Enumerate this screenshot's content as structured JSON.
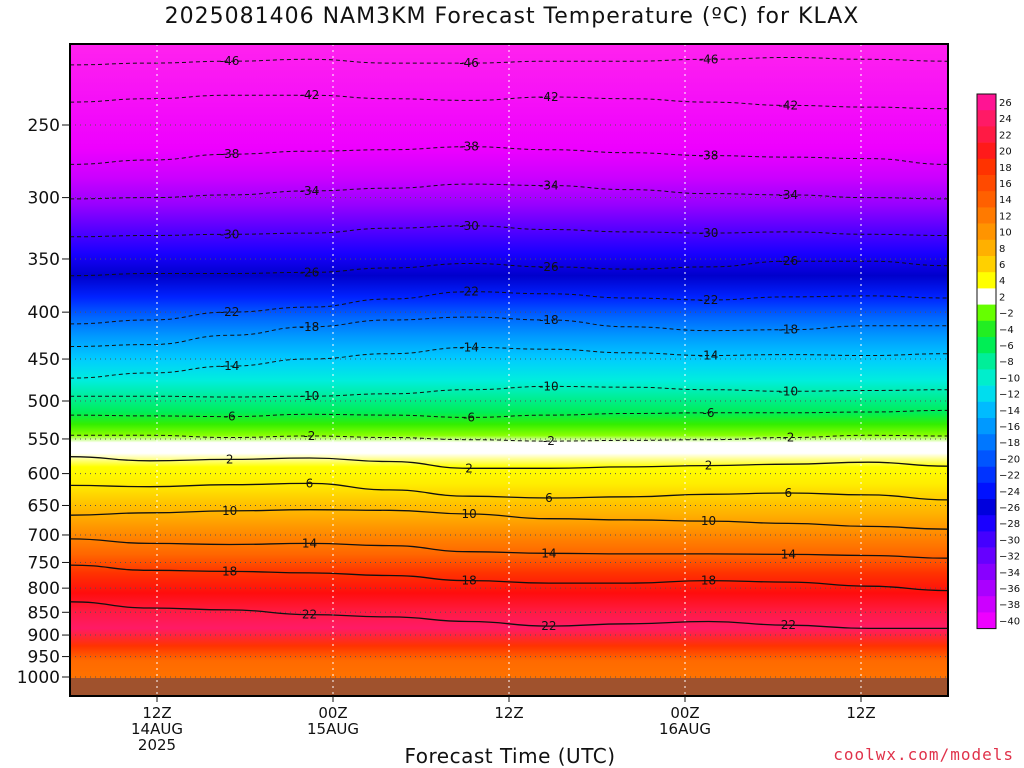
{
  "chart_data": {
    "type": "heatmap",
    "title": "2025081406 NAM3KM Forecast Temperature (ºC) for KLAX",
    "xlabel": "Forecast Time (UTC)",
    "ylabel": "",
    "y_scale": "log-pressure (hPa), inverted",
    "ylim": [
      1000,
      200
    ],
    "y_ticks": [
      "250",
      "300",
      "350",
      "400",
      "450",
      "500",
      "550",
      "600",
      "650",
      "700",
      "750",
      "800",
      "850",
      "900",
      "950",
      "1000"
    ],
    "x_ticks": [
      {
        "lines": [
          "12Z",
          "14AUG",
          "2025"
        ]
      },
      {
        "lines": [
          "00Z",
          "15AUG"
        ]
      },
      {
        "lines": [
          "12Z"
        ]
      },
      {
        "lines": [
          "00Z",
          "16AUG"
        ]
      },
      {
        "lines": [
          "12Z"
        ]
      }
    ],
    "colorbar": {
      "labels": [
        "26",
        "24",
        "22",
        "20",
        "18",
        "16",
        "14",
        "12",
        "10",
        "8",
        "6",
        "4",
        "2",
        "−2",
        "−4",
        "−6",
        "−8",
        "−10",
        "−12",
        "−14",
        "−16",
        "−18",
        "−20",
        "−22",
        "−24",
        "−26",
        "−28",
        "−30",
        "−32",
        "−34",
        "−36",
        "−38",
        "−40"
      ],
      "colors": [
        "#ff1493",
        "#ff1a66",
        "#ff1a44",
        "#ff1a1a",
        "#ff3300",
        "#ff4a00",
        "#ff6000",
        "#ff7a00",
        "#ff9400",
        "#ffb000",
        "#ffd000",
        "#ffff00",
        "#ffffff",
        "#66ff00",
        "#22ee22",
        "#00ee55",
        "#00ee99",
        "#00eecc",
        "#00ddee",
        "#00bbff",
        "#0099ff",
        "#0077ff",
        "#0055ff",
        "#0033ff",
        "#0011ff",
        "#0000dd",
        "#1a00ff",
        "#4400ff",
        "#6600ff",
        "#8800ff",
        "#aa00ff",
        "#cc00ff",
        "#ee00ff"
      ]
    },
    "isotherms": [
      {
        "label": "-46",
        "p": [
          215,
          214,
          213,
          212,
          214,
          214,
          213,
          213,
          212,
          211,
          212,
          213
        ]
      },
      {
        "label": "-42",
        "p": [
          236,
          234,
          232,
          232,
          234,
          235,
          233,
          234,
          236,
          238,
          239,
          240
        ]
      },
      {
        "label": "-38",
        "p": [
          276,
          273,
          269,
          267,
          266,
          264,
          266,
          268,
          270,
          271,
          272,
          276
        ]
      },
      {
        "label": "-34",
        "p": [
          301,
          300,
          298,
          295,
          293,
          290,
          291,
          294,
          297,
          298,
          300,
          301
        ]
      },
      {
        "label": "-30",
        "p": [
          331,
          330,
          329,
          328,
          324,
          322,
          325,
          327,
          328,
          327,
          329,
          330
        ]
      },
      {
        "label": "-26",
        "p": [
          365,
          363,
          363,
          362,
          358,
          354,
          357,
          359,
          357,
          352,
          352,
          356
        ]
      },
      {
        "label": "-22",
        "p": [
          412,
          408,
          400,
          395,
          387,
          380,
          382,
          386,
          388,
          385,
          384,
          386
        ]
      },
      {
        "label": "-18",
        "p": [
          436,
          434,
          424,
          415,
          408,
          405,
          408,
          415,
          419,
          418,
          414,
          414
        ]
      },
      {
        "label": "-14",
        "p": [
          472,
          466,
          458,
          450,
          444,
          437,
          439,
          443,
          446,
          445,
          446,
          444
        ]
      },
      {
        "label": "-10",
        "p": [
          494,
          494,
          495,
          494,
          491,
          486,
          482,
          483,
          486,
          488,
          487,
          486
        ]
      },
      {
        "label": "-6",
        "p": [
          518,
          519,
          520,
          517,
          518,
          521,
          518,
          516,
          515,
          515,
          514,
          512
        ]
      },
      {
        "label": "-2",
        "p": [
          545,
          545,
          548,
          546,
          548,
          551,
          553,
          552,
          551,
          548,
          545,
          546
        ]
      },
      {
        "label": "2",
        "p": [
          575,
          581,
          579,
          577,
          582,
          592,
          592,
          590,
          588,
          586,
          583,
          589
        ]
      },
      {
        "label": "6",
        "p": [
          618,
          620,
          617,
          615,
          625,
          635,
          638,
          636,
          632,
          630,
          633,
          641
        ]
      },
      {
        "label": "10",
        "p": [
          666,
          662,
          659,
          657,
          658,
          664,
          672,
          674,
          676,
          680,
          685,
          690
        ]
      },
      {
        "label": "14",
        "p": [
          707,
          715,
          717,
          715,
          719,
          730,
          733,
          734,
          734,
          735,
          737,
          742
        ]
      },
      {
        "label": "18",
        "p": [
          755,
          765,
          767,
          770,
          775,
          785,
          790,
          790,
          785,
          788,
          796,
          805
        ]
      },
      {
        "label": "22",
        "p": [
          828,
          841,
          845,
          855,
          860,
          870,
          880,
          875,
          870,
          878,
          885,
          885
        ]
      }
    ]
  },
  "credit": "coolwx.com/models"
}
